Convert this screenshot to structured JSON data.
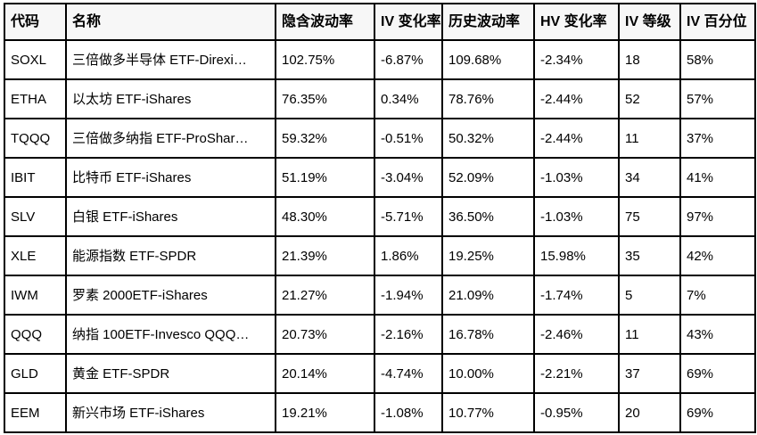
{
  "colors": {
    "border": "#000000",
    "text": "#000000",
    "header_background": "#f7f7f7",
    "row_background": "#ffffff"
  },
  "table": {
    "columns": [
      {
        "key": "code",
        "label": "代码"
      },
      {
        "key": "name",
        "label": "名称"
      },
      {
        "key": "iv",
        "label": "隐含波动率"
      },
      {
        "key": "iv_change",
        "label": "IV 变化率"
      },
      {
        "key": "hv",
        "label": "历史波动率"
      },
      {
        "key": "hv_change",
        "label": "HV 变化率"
      },
      {
        "key": "iv_rank",
        "label": "IV 等级"
      },
      {
        "key": "iv_percentile",
        "label": "IV 百分位"
      }
    ],
    "rows": [
      {
        "code": "SOXL",
        "name": "三倍做多半导体 ETF-Direxi…",
        "iv": "102.75%",
        "iv_change": "-6.87%",
        "hv": "109.68%",
        "hv_change": "-2.34%",
        "iv_rank": "18",
        "iv_percentile": "58%"
      },
      {
        "code": "ETHA",
        "name": "以太坊 ETF-iShares",
        "iv": "76.35%",
        "iv_change": "0.34%",
        "hv": "78.76%",
        "hv_change": "-2.44%",
        "iv_rank": "52",
        "iv_percentile": "57%"
      },
      {
        "code": "TQQQ",
        "name": "三倍做多纳指 ETF-ProShar…",
        "iv": "59.32%",
        "iv_change": "-0.51%",
        "hv": "50.32%",
        "hv_change": "-2.44%",
        "iv_rank": "11",
        "iv_percentile": "37%"
      },
      {
        "code": "IBIT",
        "name": "比特币 ETF-iShares",
        "iv": "51.19%",
        "iv_change": "-3.04%",
        "hv": "52.09%",
        "hv_change": "-1.03%",
        "iv_rank": "34",
        "iv_percentile": "41%"
      },
      {
        "code": "SLV",
        "name": "白银 ETF-iShares",
        "iv": "48.30%",
        "iv_change": "-5.71%",
        "hv": "36.50%",
        "hv_change": "-1.03%",
        "iv_rank": "75",
        "iv_percentile": "97%"
      },
      {
        "code": "XLE",
        "name": "能源指数 ETF-SPDR",
        "iv": "21.39%",
        "iv_change": "1.86%",
        "hv": "19.25%",
        "hv_change": "15.98%",
        "iv_rank": "35",
        "iv_percentile": "42%"
      },
      {
        "code": "IWM",
        "name": "罗素 2000ETF-iShares",
        "iv": "21.27%",
        "iv_change": "-1.94%",
        "hv": "21.09%",
        "hv_change": "-1.74%",
        "iv_rank": "5",
        "iv_percentile": "7%"
      },
      {
        "code": "QQQ",
        "name": "纳指 100ETF-Invesco QQQ…",
        "iv": "20.73%",
        "iv_change": "-2.16%",
        "hv": "16.78%",
        "hv_change": "-2.46%",
        "iv_rank": "11",
        "iv_percentile": "43%"
      },
      {
        "code": "GLD",
        "name": "黄金 ETF-SPDR",
        "iv": "20.14%",
        "iv_change": "-4.74%",
        "hv": "10.00%",
        "hv_change": "-2.21%",
        "iv_rank": "37",
        "iv_percentile": "69%"
      },
      {
        "code": "EEM",
        "name": "新兴市场 ETF-iShares",
        "iv": "19.21%",
        "iv_change": "-1.08%",
        "hv": "10.77%",
        "hv_change": "-0.95%",
        "iv_rank": "20",
        "iv_percentile": "69%"
      }
    ]
  }
}
